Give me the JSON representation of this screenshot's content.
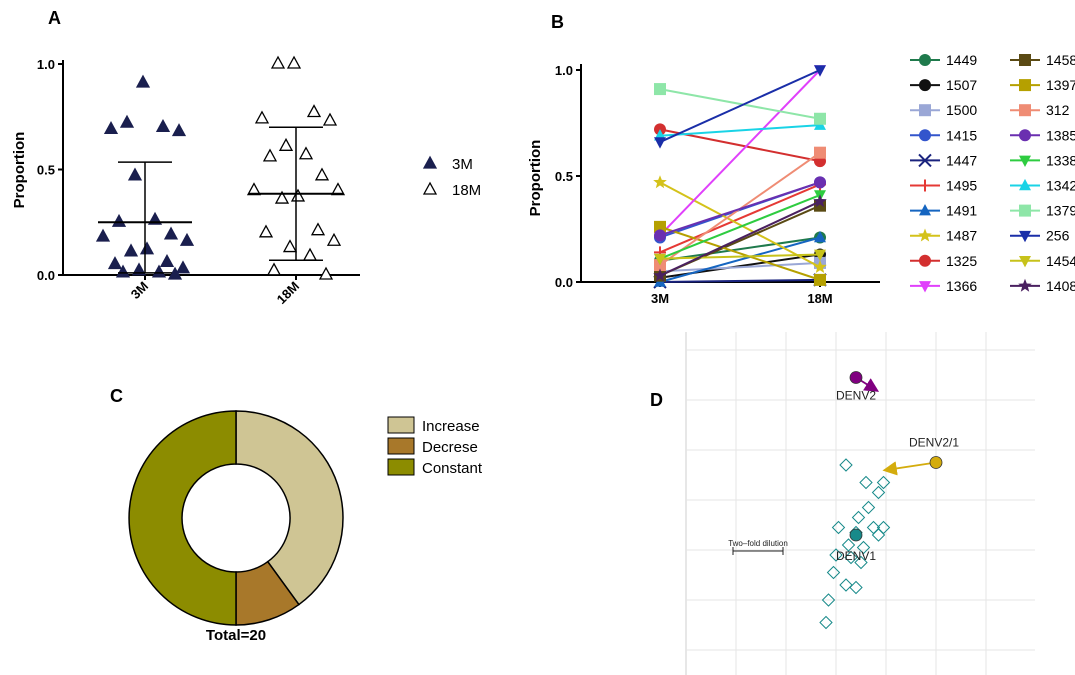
{
  "panels": {
    "a": "A",
    "b": "B",
    "c": "C",
    "d": "D"
  },
  "colors": {
    "navy": "#1a1f4e",
    "gold": "#d4ac0d",
    "purple": "#800080",
    "teal": "#178a8a",
    "grid": "#e6e6e6"
  },
  "chart_data": [
    {
      "type": "scatter",
      "ylabel": "Proportion",
      "ylim": [
        0,
        1
      ],
      "yticks": [
        "0.0",
        "0.5",
        "1.0"
      ],
      "categories": [
        "3M",
        "18M"
      ],
      "legend": [
        {
          "name": "3M",
          "marker": "filled-triangle"
        },
        {
          "name": "18M",
          "marker": "open-triangle"
        }
      ],
      "series": [
        {
          "name": "3M",
          "values": [
            0.91,
            0.72,
            0.7,
            0.69,
            0.68,
            0.47,
            0.26,
            0.25,
            0.19,
            0.18,
            0.16,
            0.12,
            0.11,
            0.06,
            0.05,
            0.03,
            0.02,
            0.01,
            0.01,
            0.0
          ],
          "mean": 0.25,
          "err_low": 0.01,
          "err_high": 0.535
        },
        {
          "name": "18M",
          "values": [
            1.0,
            1.0,
            0.77,
            0.74,
            0.73,
            0.61,
            0.57,
            0.56,
            0.47,
            0.4,
            0.4,
            0.37,
            0.36,
            0.21,
            0.2,
            0.16,
            0.13,
            0.09,
            0.02,
            0.0
          ],
          "mean": 0.385,
          "err_low": 0.07,
          "err_high": 0.7
        }
      ]
    },
    {
      "type": "line",
      "ylabel": "Proportion",
      "ylim": [
        0,
        1
      ],
      "yticks": [
        "0.0",
        "0.5",
        "1.0"
      ],
      "categories": [
        "3M",
        "18M"
      ],
      "series": [
        {
          "name": "1449",
          "color": "#1f7a4c",
          "marker": "circle",
          "values": [
            0.1,
            0.21
          ]
        },
        {
          "name": "1507",
          "color": "#111111",
          "marker": "circle",
          "values": [
            0.02,
            0.13
          ]
        },
        {
          "name": "1500",
          "color": "#9aa7d6",
          "marker": "square",
          "values": [
            0.05,
            0.09
          ]
        },
        {
          "name": "1415",
          "color": "#3355cc",
          "marker": "circle",
          "values": [
            0.21,
            0.47
          ]
        },
        {
          "name": "1447",
          "color": "#1a237e",
          "marker": "x",
          "values": [
            0.0,
            0.01
          ]
        },
        {
          "name": "1495",
          "color": "#e53935",
          "marker": "plus",
          "values": [
            0.14,
            0.46
          ]
        },
        {
          "name": "1491",
          "color": "#1565c0",
          "marker": "triangle",
          "values": [
            0.0,
            0.21
          ]
        },
        {
          "name": "1487",
          "color": "#d4c21a",
          "marker": "star",
          "values": [
            0.47,
            0.07
          ]
        },
        {
          "name": "1325",
          "color": "#d32f2f",
          "marker": "circle",
          "values": [
            0.72,
            0.57
          ]
        },
        {
          "name": "1366",
          "color": "#e040fb",
          "marker": "triangle-down",
          "values": [
            0.22,
            1.0
          ]
        },
        {
          "name": "1458",
          "color": "#5a4a14",
          "marker": "square",
          "values": [
            0.03,
            0.36
          ]
        },
        {
          "name": "1397",
          "color": "#b5a000",
          "marker": "square",
          "values": [
            0.26,
            0.01
          ]
        },
        {
          "name": "312",
          "color": "#ef8c74",
          "marker": "square",
          "values": [
            0.08,
            0.61
          ]
        },
        {
          "name": "1385",
          "color": "#6a2fb0",
          "marker": "circle",
          "values": [
            0.22,
            0.47
          ]
        },
        {
          "name": "1338",
          "color": "#2ecc40",
          "marker": "triangle-down",
          "values": [
            0.11,
            0.41
          ]
        },
        {
          "name": "1342",
          "color": "#19d3e6",
          "marker": "triangle",
          "values": [
            0.69,
            0.74
          ]
        },
        {
          "name": "1379",
          "color": "#8ee6a8",
          "marker": "square",
          "values": [
            0.91,
            0.77
          ]
        },
        {
          "name": "256",
          "color": "#1a2ea8",
          "marker": "triangle-down",
          "values": [
            0.66,
            1.0
          ]
        },
        {
          "name": "1454",
          "color": "#c7c21a",
          "marker": "triangle-down",
          "values": [
            0.11,
            0.13
          ]
        },
        {
          "name": "1408",
          "color": "#4a2060",
          "marker": "star",
          "values": [
            0.03,
            0.38
          ]
        }
      ]
    },
    {
      "type": "pie",
      "categories": [
        "Increase",
        "Decrese",
        "Constant"
      ],
      "values": [
        8,
        2,
        10
      ],
      "colors": [
        "#cfc594",
        "#a8782a",
        "#8c8c00"
      ],
      "annotation": "Total=20"
    },
    {
      "type": "scatter",
      "scalebar_label": "Two–fold dilution",
      "antigens": [
        {
          "name": "DENV2",
          "x": 3.4,
          "y": 5.45,
          "color": "#800080",
          "arrow_to": [
            3.8,
            5.2
          ]
        },
        {
          "name": "DENV2/1",
          "x": 5.0,
          "y": 3.75,
          "color": "#d4ac0d",
          "arrow_to": [
            4.0,
            3.6
          ]
        },
        {
          "name": "DENV1",
          "x": 3.4,
          "y": 2.3,
          "color": "#178a8a",
          "arrow_to": null
        }
      ],
      "sera": [
        [
          3.2,
          3.7
        ],
        [
          3.6,
          3.35
        ],
        [
          3.95,
          3.35
        ],
        [
          3.85,
          3.15
        ],
        [
          3.65,
          2.85
        ],
        [
          3.45,
          2.65
        ],
        [
          3.05,
          2.45
        ],
        [
          3.4,
          2.35
        ],
        [
          3.75,
          2.45
        ],
        [
          3.95,
          2.45
        ],
        [
          3.85,
          2.3
        ],
        [
          3.25,
          2.1
        ],
        [
          3.55,
          2.05
        ],
        [
          3.0,
          1.9
        ],
        [
          3.3,
          1.85
        ],
        [
          3.5,
          1.75
        ],
        [
          2.95,
          1.55
        ],
        [
          3.2,
          1.3
        ],
        [
          2.85,
          1.0
        ],
        [
          3.4,
          1.25
        ],
        [
          2.8,
          0.55
        ]
      ]
    }
  ]
}
